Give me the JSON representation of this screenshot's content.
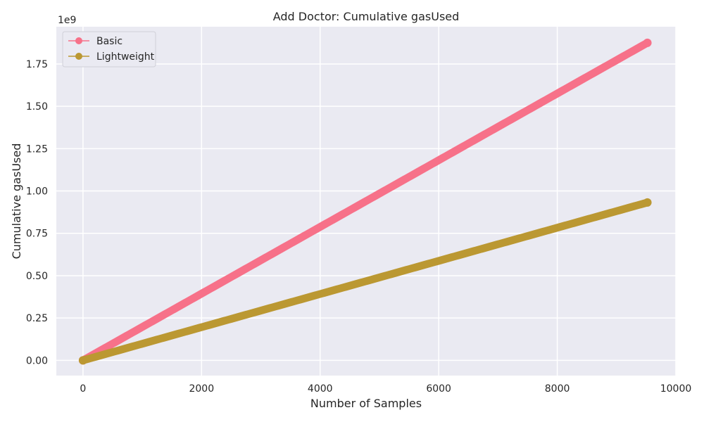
{
  "chart_data": {
    "type": "line",
    "title": "Add Doctor: Cumulative gasUsed",
    "xlabel": "Number of Samples",
    "ylabel": "Cumulative gasUsed",
    "y_multiplier_label": "1e9",
    "xlim": [
      -450,
      10000
    ],
    "ylim": [
      -0.09,
      1.97
    ],
    "x_ticks": [
      0,
      2000,
      4000,
      6000,
      8000,
      10000
    ],
    "x_tick_labels": [
      "0",
      "2000",
      "4000",
      "6000",
      "8000",
      "10000"
    ],
    "y_ticks": [
      0,
      0.25,
      0.5,
      0.75,
      1.0,
      1.25,
      1.5,
      1.75
    ],
    "y_tick_labels": [
      "0.00",
      "0.25",
      "0.50",
      "0.75",
      "1.00",
      "1.25",
      "1.50",
      "1.75"
    ],
    "grid": true,
    "legend_position": "top-left",
    "background_color": "#eaeaf2",
    "grid_color": "#ffffff",
    "series": [
      {
        "name": "Basic",
        "color": "#f77189",
        "x": [
          0,
          9520
        ],
        "y": [
          0.0,
          1.875
        ]
      },
      {
        "name": "Lightweight",
        "color": "#bb9832",
        "x": [
          0,
          9520
        ],
        "y": [
          0.0,
          0.932
        ]
      }
    ]
  }
}
